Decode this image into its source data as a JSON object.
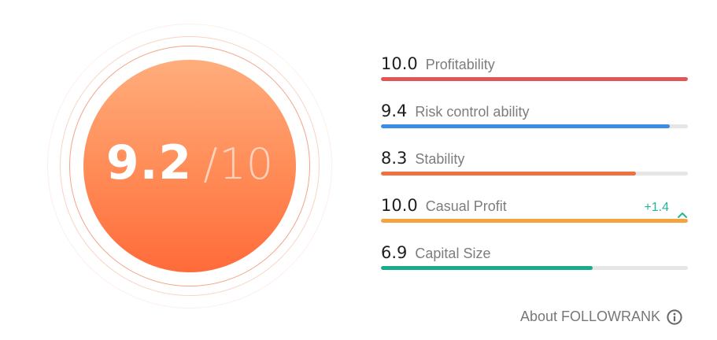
{
  "score": {
    "value": "9.2",
    "separator": "/",
    "max": "10"
  },
  "metrics": [
    {
      "value": "10.0",
      "label": "Profitability",
      "fraction": 1.0,
      "color": "#e05656",
      "change": ""
    },
    {
      "value": "9.4",
      "label": "Risk control ability",
      "fraction": 0.94,
      "color": "#3a8ee6",
      "change": ""
    },
    {
      "value": "8.3",
      "label": "Stability",
      "fraction": 0.83,
      "color": "#f07040",
      "change": ""
    },
    {
      "value": "10.0",
      "label": "Casual Profit",
      "fraction": 1.0,
      "color": "#f5a33e",
      "change": "+1.4",
      "change_icon": "chevron-up-icon"
    },
    {
      "value": "6.9",
      "label": "Capital Size",
      "fraction": 0.69,
      "color": "#1aaa8c",
      "change": ""
    }
  ],
  "about": {
    "label": "About FOLLOWRANK",
    "icon": "info-icon"
  }
}
